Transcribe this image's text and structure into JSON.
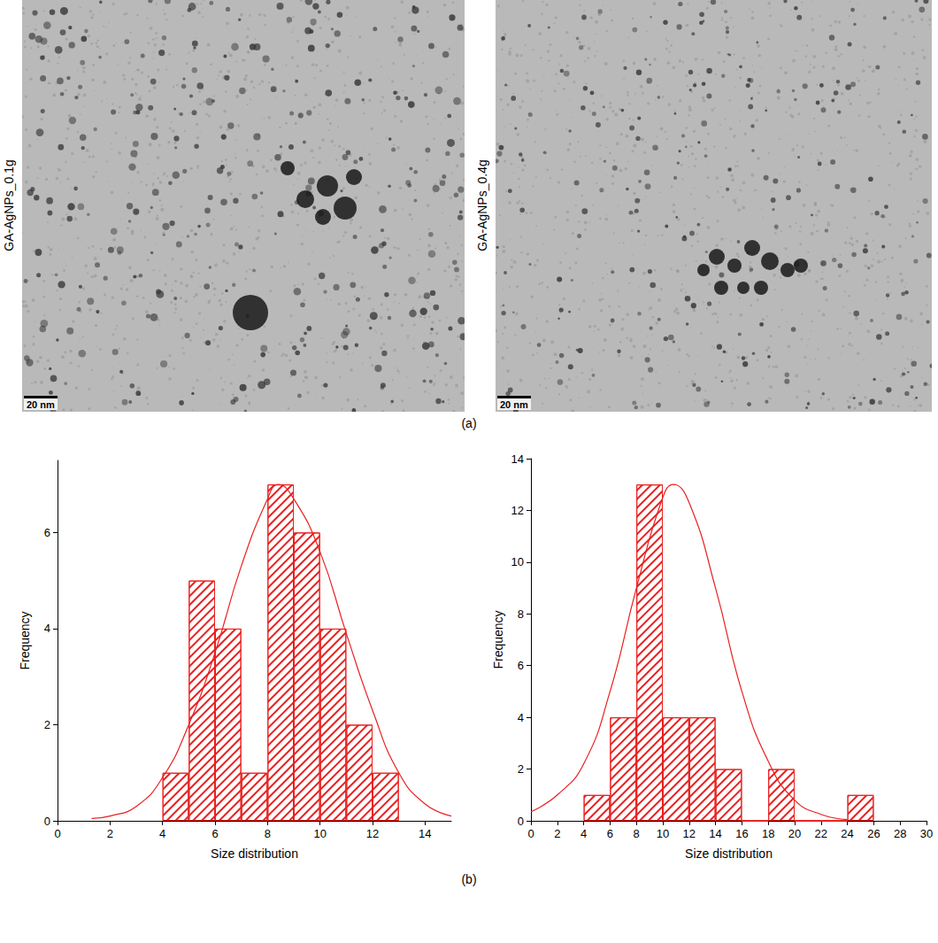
{
  "images": [
    {
      "label": "GA-AgNPs_0.1g",
      "scale_bar": "20 nm"
    },
    {
      "label": "GA-AgNPs_0.4g",
      "scale_bar": "20 nm"
    }
  ],
  "panel_labels": [
    "(a)",
    "(b)"
  ],
  "chart_data": [
    {
      "type": "histogram",
      "x_label": "Size distribution",
      "y_label": "Frequency",
      "bins": [
        4,
        5,
        6,
        7,
        8,
        9,
        10,
        11,
        12,
        13
      ],
      "counts": [
        1,
        5,
        4,
        1,
        7,
        6,
        4,
        2,
        1
      ],
      "color": "#e8201f",
      "xlim": [
        0,
        15
      ],
      "xticks": [
        0,
        2,
        4,
        6,
        8,
        10,
        12,
        14
      ],
      "ylim": [
        0,
        7.5
      ],
      "yticks": [
        0,
        2,
        4,
        6
      ],
      "curve": {
        "x": [
          1.3,
          2,
          3,
          4,
          5,
          6,
          7,
          8,
          8.4,
          9,
          10,
          11,
          12,
          13,
          14,
          15
        ],
        "values": [
          0.05,
          0.1,
          0.3,
          0.9,
          2.0,
          3.5,
          5.3,
          6.7,
          7.0,
          6.7,
          5.6,
          3.9,
          2.3,
          1.0,
          0.35,
          0.1
        ]
      }
    },
    {
      "type": "histogram",
      "x_label": "Size distribution",
      "y_label": "Frequency",
      "bins": [
        4,
        6,
        8,
        10,
        12,
        14,
        16,
        18,
        20,
        22,
        24,
        26
      ],
      "counts": [
        1,
        4,
        13,
        4,
        4,
        2,
        0,
        2,
        0,
        0,
        1
      ],
      "color": "#e8201f",
      "xlim": [
        0,
        30
      ],
      "xticks": [
        0,
        2,
        4,
        6,
        8,
        10,
        12,
        14,
        16,
        18,
        20,
        22,
        24,
        26,
        28,
        30
      ],
      "ylim": [
        0,
        14
      ],
      "yticks": [
        0,
        2,
        4,
        6,
        8,
        10,
        12,
        14
      ],
      "curve": {
        "x": [
          0,
          2,
          4,
          6,
          8,
          10,
          10.8,
          12,
          14,
          16,
          18,
          20,
          22,
          24
        ],
        "values": [
          0.35,
          1.0,
          2.2,
          5.0,
          9.0,
          12.5,
          13.0,
          12.3,
          9.0,
          5.0,
          2.3,
          0.8,
          0.25,
          0.05
        ]
      }
    }
  ]
}
